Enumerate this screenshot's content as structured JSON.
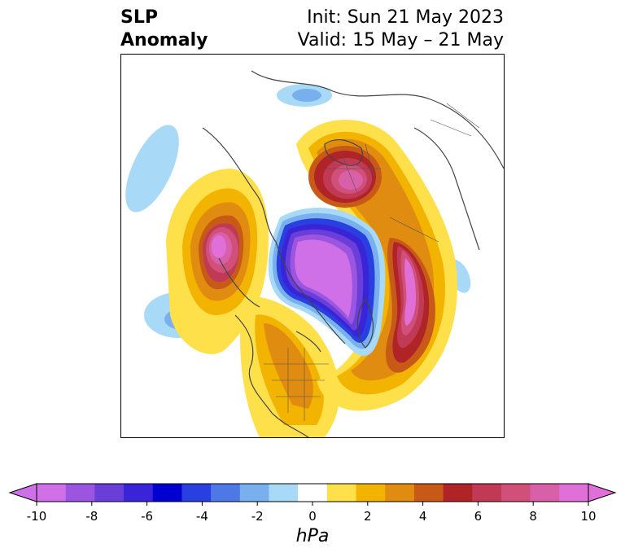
{
  "title": {
    "left_line1": "SLP",
    "left_line2": "Anomaly",
    "init": "Init: Sun 21 May 2023",
    "valid": "Valid: 15 May – 21 May"
  },
  "colorbar": {
    "unit": "hPa",
    "ticks": [
      "-10",
      "-8",
      "-6",
      "-4",
      "-2",
      "0",
      "2",
      "4",
      "6",
      "8",
      "10"
    ],
    "levels": [
      -10,
      -9,
      -8,
      -7,
      -6,
      -5,
      -4,
      -3,
      -2,
      -1,
      1,
      2,
      3,
      4,
      5,
      6,
      7,
      8,
      9,
      10
    ],
    "colors": [
      "#d070e8",
      "#9b55e0",
      "#6a3ed8",
      "#3a24d8",
      "#0000d0",
      "#2a3fe0",
      "#4e78e6",
      "#78b0ee",
      "#a8daf8",
      "#ffffff",
      "#fde04a",
      "#f2b400",
      "#e08c10",
      "#c85a18",
      "#b02428",
      "#c03a55",
      "#d0507a",
      "#d860a8",
      "#e070d8"
    ],
    "extend_low_color": "#d070e8",
    "extend_high_color": "#e070d8"
  },
  "map": {
    "projection": "north polar stereographic",
    "field": "sea level pressure anomaly",
    "features": [
      {
        "name": "greenland-low",
        "sign": "negative",
        "peak_hpa": -10
      },
      {
        "name": "northeast-pacific-high",
        "sign": "positive",
        "peak_hpa": 9
      },
      {
        "name": "europe-scandinavia-high",
        "sign": "positive",
        "peak_hpa": 8
      },
      {
        "name": "siberia-high",
        "sign": "positive",
        "peak_hpa": 9
      },
      {
        "name": "north-pacific-low",
        "sign": "negative",
        "peak_hpa": -3
      },
      {
        "name": "central-asia-low",
        "sign": "negative",
        "peak_hpa": -3
      },
      {
        "name": "north-america-high",
        "sign": "positive",
        "peak_hpa": 4
      }
    ]
  }
}
